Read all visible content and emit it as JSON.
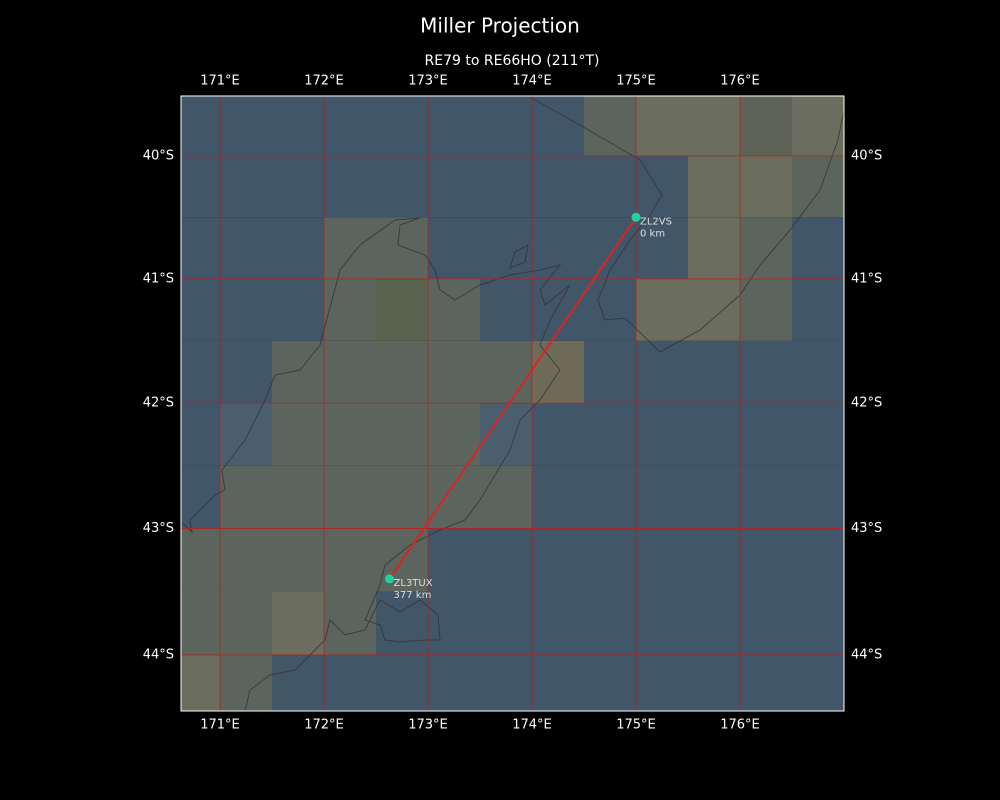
{
  "title": "Miller Projection",
  "subtitle": "RE79 to RE66HO (211°T)",
  "map": {
    "xlim": [
      170.625,
      177
    ],
    "ylim": [
      -44.44,
      -39.51
    ],
    "xticks": [
      {
        "value": 171,
        "label": "171°E"
      },
      {
        "value": 172,
        "label": "172°E"
      },
      {
        "value": 173,
        "label": "173°E"
      },
      {
        "value": 174,
        "label": "174°E"
      },
      {
        "value": 175,
        "label": "175°E"
      },
      {
        "value": 176,
        "label": "176°E"
      }
    ],
    "yticks": [
      {
        "value": -40,
        "label": "40°S"
      },
      {
        "value": -41,
        "label": "41°S"
      },
      {
        "value": -42,
        "label": "42°S"
      },
      {
        "value": -43,
        "label": "43°S"
      },
      {
        "value": -44,
        "label": "44°S"
      }
    ],
    "grid_color": "#b22222",
    "path_color": "#dd2222",
    "station_color": "#1dd3a0"
  },
  "stations": [
    {
      "call": "ZL2VS",
      "distance": "0 km",
      "lon": 175.0,
      "lat": -40.5
    },
    {
      "call": "ZL3TUX",
      "distance": "377 km",
      "lon": 172.63,
      "lat": -43.4
    }
  ]
}
